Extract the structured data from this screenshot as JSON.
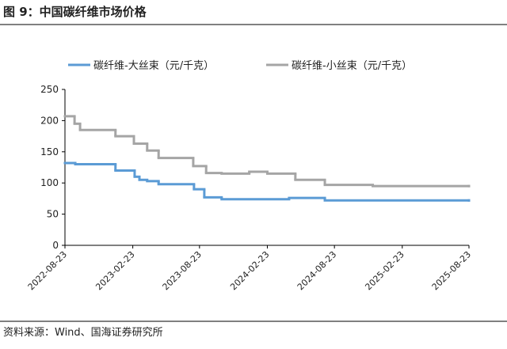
{
  "header": {
    "title": "图 9：中国碳纤维市场价格"
  },
  "footer": {
    "source": "资料来源：Wind、国海证券研究所"
  },
  "chart_data": {
    "type": "line",
    "step": true,
    "xlim": [
      "2022-08-23",
      "2025-08-23"
    ],
    "xticks": [
      "2022-08-23",
      "2023-02-23",
      "2023-08-23",
      "2024-02-23",
      "2024-08-23",
      "2025-02-23",
      "2025-08-23"
    ],
    "ylim": [
      0,
      250
    ],
    "yticks": [
      0,
      50,
      100,
      150,
      200,
      250
    ],
    "grid": false,
    "legend": "top",
    "series": [
      {
        "name": "碳纤维-大丝束（元/千克）",
        "color": "#5b9bd5",
        "x": [
          "2022-08-23",
          "2022-09-20",
          "2023-01-07",
          "2023-02-28",
          "2023-03-13",
          "2023-04-03",
          "2023-05-04",
          "2023-08-08",
          "2023-09-05",
          "2023-10-22",
          "2024-04-22",
          "2024-07-28",
          "2025-08-23"
        ],
        "values": [
          132,
          130,
          120,
          110,
          105,
          103,
          98,
          90,
          77,
          74,
          76,
          72,
          72
        ]
      },
      {
        "name": "碳纤维-小丝束（元/千克）",
        "color": "#a5a5a5",
        "x": [
          "2022-08-23",
          "2022-09-18",
          "2022-10-03",
          "2023-01-07",
          "2023-02-26",
          "2023-04-03",
          "2023-05-04",
          "2023-08-06",
          "2023-09-10",
          "2023-10-22",
          "2024-01-05",
          "2024-02-23",
          "2024-05-09",
          "2024-07-28",
          "2024-12-05",
          "2025-08-23"
        ],
        "values": [
          207,
          195,
          185,
          175,
          163,
          152,
          140,
          127,
          116,
          115,
          118,
          115,
          105,
          97,
          95,
          95
        ]
      }
    ]
  }
}
